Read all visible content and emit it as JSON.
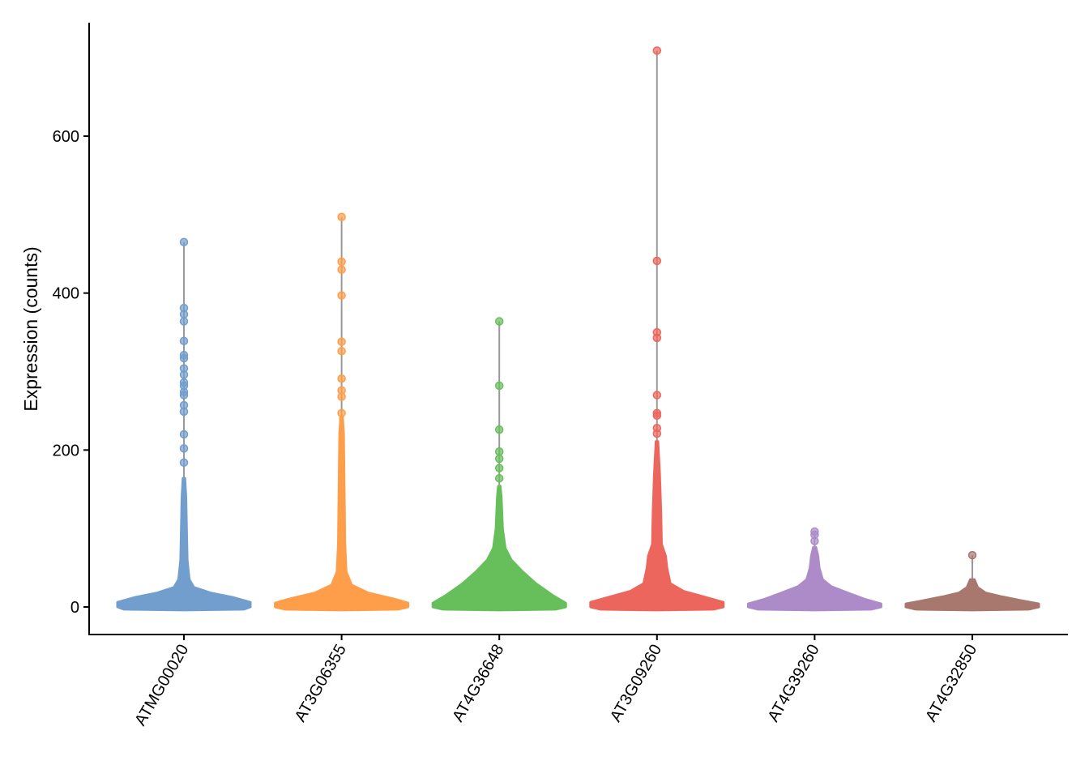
{
  "chart_data": {
    "type": "violin",
    "title": "",
    "xlabel": "",
    "ylabel": "Expression (counts)",
    "ylim": [
      -35,
      745
    ],
    "yticks": [
      0,
      200,
      400,
      600
    ],
    "grid": false,
    "legend": "none",
    "categories": [
      "ATMG00020",
      "AT3G06355",
      "AT4G36648",
      "AT3G09260",
      "AT4G39260",
      "AT4G32850"
    ],
    "series": [
      {
        "category": "ATMG00020",
        "color": "#729ECE",
        "max": 465,
        "density": [
          [
            -3,
            0.9
          ],
          [
            0,
            1
          ],
          [
            6,
            1
          ],
          [
            12,
            0.75
          ],
          [
            18,
            0.4
          ],
          [
            25,
            0.15
          ],
          [
            35,
            0.08
          ],
          [
            60,
            0.05
          ],
          [
            100,
            0.04
          ],
          [
            140,
            0.03
          ],
          [
            164,
            0.015
          ]
        ],
        "outliers": [
          465,
          381,
          373,
          364,
          339,
          321,
          317,
          304,
          296,
          286,
          282,
          274,
          270,
          257,
          249,
          220,
          202,
          184
        ]
      },
      {
        "category": "AT3G06355",
        "color": "#FF9E4A",
        "max": 497,
        "density": [
          [
            -3,
            0.85
          ],
          [
            0,
            1
          ],
          [
            5,
            1
          ],
          [
            10,
            0.8
          ],
          [
            18,
            0.4
          ],
          [
            28,
            0.15
          ],
          [
            45,
            0.07
          ],
          [
            80,
            0.05
          ],
          [
            150,
            0.04
          ],
          [
            220,
            0.03
          ],
          [
            242,
            0.015
          ]
        ],
        "outliers": [
          497,
          440,
          430,
          397,
          338,
          326,
          291,
          276,
          268,
          247
        ]
      },
      {
        "category": "AT4G36648",
        "color": "#67BF5C",
        "max": 364,
        "density": [
          [
            -3,
            0.85
          ],
          [
            0,
            1
          ],
          [
            5,
            1
          ],
          [
            15,
            0.8
          ],
          [
            30,
            0.55
          ],
          [
            45,
            0.35
          ],
          [
            60,
            0.18
          ],
          [
            75,
            0.09
          ],
          [
            100,
            0.05
          ],
          [
            140,
            0.03
          ],
          [
            154,
            0.015
          ]
        ],
        "outliers": [
          364,
          282,
          226,
          198,
          189,
          177,
          164
        ]
      },
      {
        "category": "AT3G09260",
        "color": "#ED665D",
        "max": 709,
        "density": [
          [
            -3,
            0.85
          ],
          [
            0,
            1
          ],
          [
            6,
            1
          ],
          [
            12,
            0.75
          ],
          [
            20,
            0.4
          ],
          [
            30,
            0.2
          ],
          [
            50,
            0.15
          ],
          [
            65,
            0.13
          ],
          [
            80,
            0.07
          ],
          [
            120,
            0.06
          ],
          [
            170,
            0.04
          ],
          [
            211,
            0.015
          ]
        ],
        "outliers": [
          709,
          441,
          350,
          343,
          270,
          247,
          244,
          228,
          221
        ]
      },
      {
        "category": "AT4G39260",
        "color": "#AD8BC9",
        "max": 96,
        "density": [
          [
            -3,
            0.85
          ],
          [
            0,
            1
          ],
          [
            4,
            1
          ],
          [
            10,
            0.75
          ],
          [
            18,
            0.5
          ],
          [
            26,
            0.25
          ],
          [
            35,
            0.12
          ],
          [
            50,
            0.07
          ],
          [
            65,
            0.05
          ],
          [
            76,
            0.02
          ]
        ],
        "outliers": [
          96,
          92,
          84
        ]
      },
      {
        "category": "AT4G32850",
        "color": "#A8786E",
        "max": 66,
        "density": [
          [
            -3,
            0.85
          ],
          [
            0,
            1
          ],
          [
            4,
            1
          ],
          [
            8,
            0.75
          ],
          [
            13,
            0.45
          ],
          [
            18,
            0.2
          ],
          [
            25,
            0.08
          ],
          [
            35,
            0.03
          ]
        ],
        "outliers": [
          66
        ]
      }
    ]
  }
}
